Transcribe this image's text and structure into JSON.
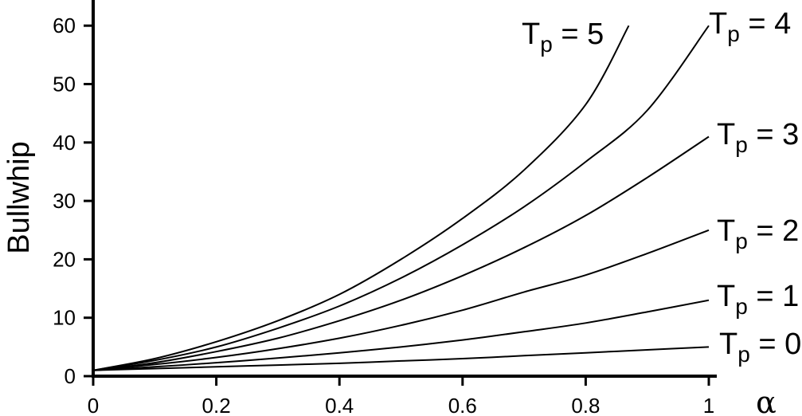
{
  "chart_data": {
    "type": "line",
    "xlabel": "α",
    "ylabel": "Bullwhip",
    "xlim": [
      0,
      1
    ],
    "ylim": [
      0,
      65
    ],
    "xticks": [
      "0",
      "0.2",
      "0.4",
      "0.6",
      "0.8",
      "1"
    ],
    "yticks": [
      "0",
      "10",
      "20",
      "30",
      "40",
      "50",
      "60"
    ],
    "grid": false,
    "series": [
      {
        "name": "Tp = 0",
        "label_main": "T",
        "label_sub": "p",
        "label_rest": " = 0",
        "x": [
          0,
          0.1,
          0.2,
          0.3,
          0.4,
          0.5,
          0.6,
          0.7,
          0.8,
          0.9,
          1.0
        ],
        "y": [
          1,
          1.3,
          1.6,
          1.9,
          2.2,
          2.6,
          3.0,
          3.5,
          4.0,
          4.5,
          5.0
        ]
      },
      {
        "name": "Tp = 1",
        "label_main": "T",
        "label_sub": "p",
        "label_rest": " = 1",
        "x": [
          0,
          0.1,
          0.2,
          0.3,
          0.4,
          0.5,
          0.6,
          0.7,
          0.8,
          0.9,
          1.0
        ],
        "y": [
          1,
          1.6,
          2.3,
          3.1,
          4.0,
          5.0,
          6.2,
          7.6,
          9.1,
          11.0,
          13.0
        ]
      },
      {
        "name": "Tp = 2",
        "label_main": "T",
        "label_sub": "p",
        "label_rest": " = 2",
        "x": [
          0,
          0.1,
          0.2,
          0.3,
          0.4,
          0.5,
          0.6,
          0.7,
          0.8,
          0.9,
          1.0
        ],
        "y": [
          1,
          2.0,
          3.2,
          4.7,
          6.5,
          8.7,
          11.3,
          14.4,
          17.3,
          21.0,
          25.0
        ]
      },
      {
        "name": "Tp = 3",
        "label_main": "T",
        "label_sub": "p",
        "label_rest": " = 3",
        "x": [
          0,
          0.1,
          0.2,
          0.3,
          0.4,
          0.5,
          0.6,
          0.7,
          0.8,
          0.9,
          1.0
        ],
        "y": [
          1,
          2.3,
          4.2,
          6.5,
          9.5,
          13.0,
          17.2,
          22.0,
          27.5,
          34.0,
          41.0
        ]
      },
      {
        "name": "Tp = 4",
        "label_main": "T",
        "label_sub": "p",
        "label_rest": " = 4",
        "x": [
          0,
          0.1,
          0.2,
          0.3,
          0.4,
          0.5,
          0.6,
          0.7,
          0.8,
          0.9,
          1.0
        ],
        "y": [
          1,
          2.7,
          5.0,
          8.2,
          12.0,
          16.8,
          22.5,
          29.0,
          36.7,
          45.5,
          60.0
        ]
      },
      {
        "name": "Tp = 5",
        "label_main": "T",
        "label_sub": "p",
        "label_rest": " = 5",
        "x": [
          0,
          0.1,
          0.2,
          0.3,
          0.4,
          0.5,
          0.6,
          0.7,
          0.8,
          0.87
        ],
        "y": [
          1,
          3.0,
          5.9,
          9.5,
          14.0,
          20.0,
          27.0,
          35.3,
          46.5,
          60.0
        ]
      }
    ]
  }
}
